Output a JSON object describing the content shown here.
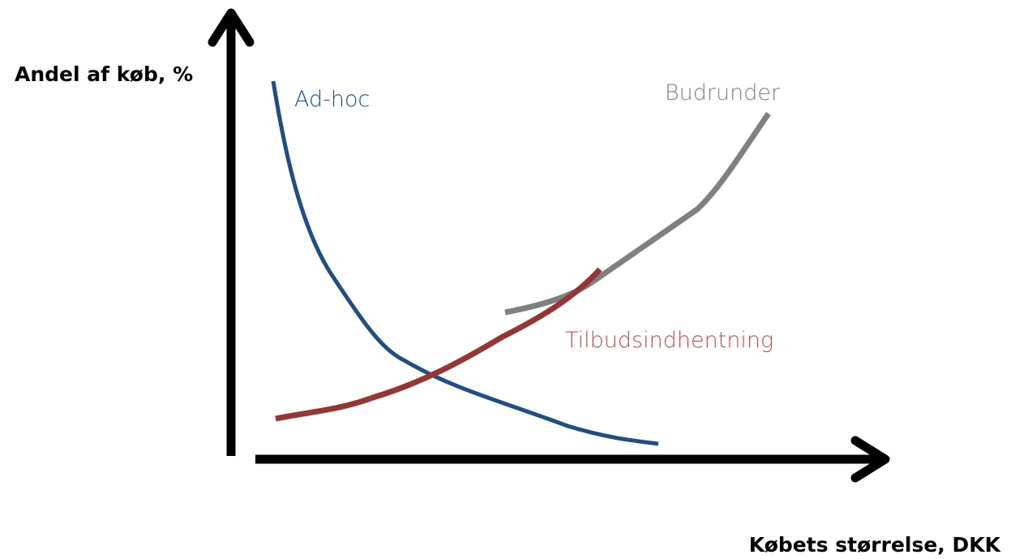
{
  "y_axis": {
    "label": "Andel af køb, %"
  },
  "x_axis": {
    "label": "Købets størrelse, DKK"
  },
  "curves": [
    {
      "label": "Ad-hoc"
    },
    {
      "label": "Budrunder"
    },
    {
      "label": "Tilbudsindhentning"
    }
  ]
}
